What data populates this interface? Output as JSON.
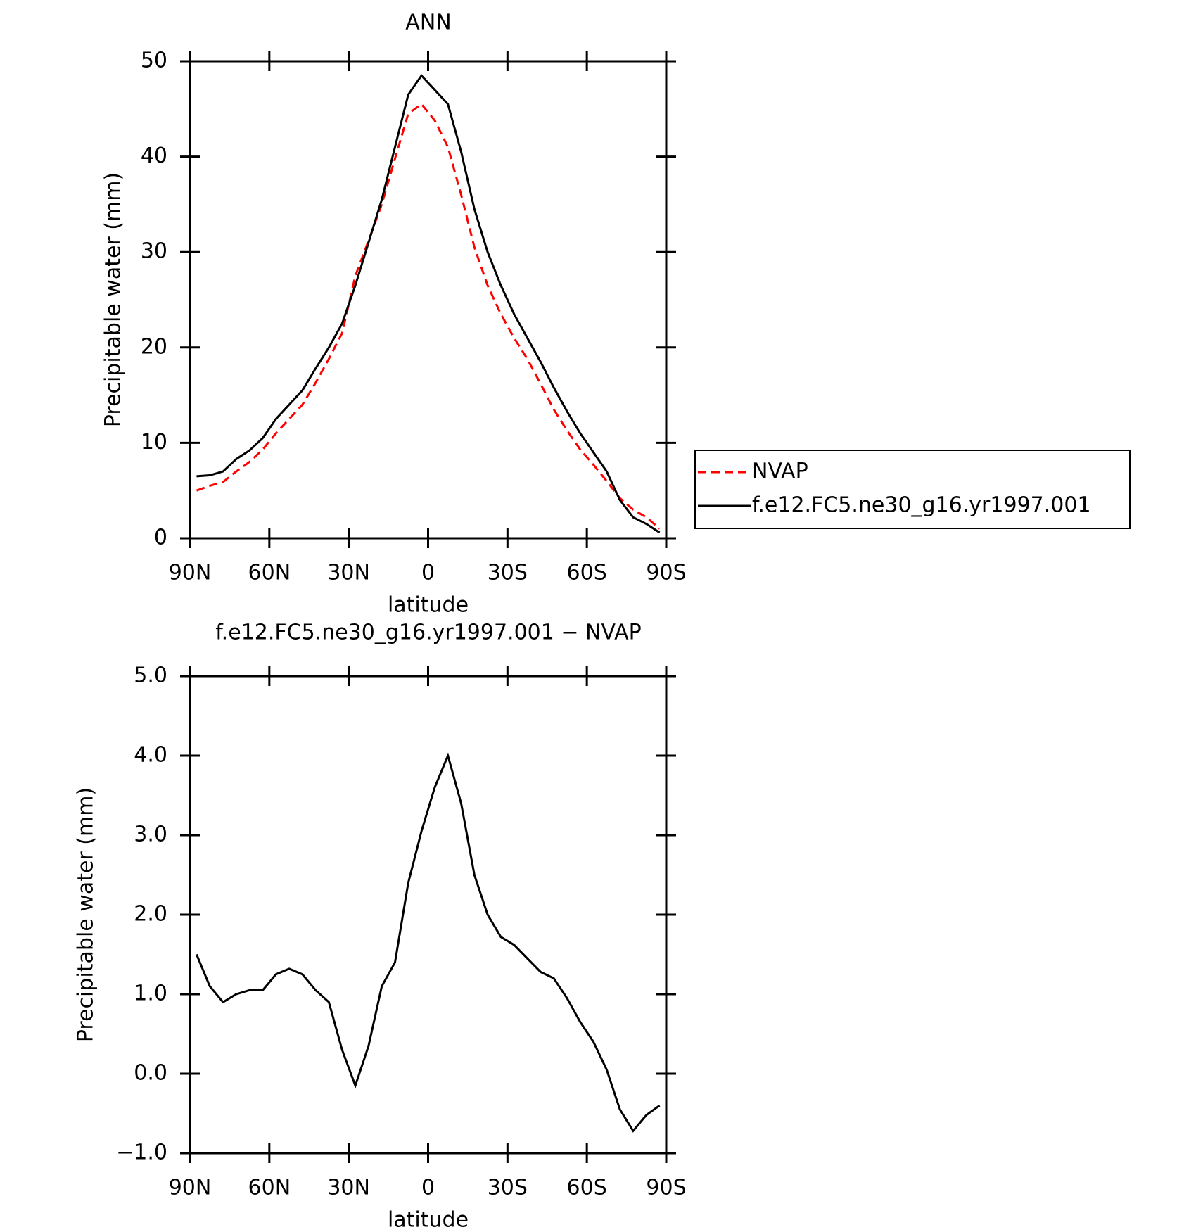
{
  "chart_data": [
    {
      "type": "line",
      "title": "ANN",
      "x_label": "latitude",
      "y_label": "Precipitable water (mm)",
      "x": [
        87.5,
        82.5,
        77.5,
        72.5,
        67.5,
        62.5,
        57.5,
        52.5,
        47.5,
        42.5,
        37.5,
        32.5,
        27.5,
        22.5,
        17.5,
        12.5,
        7.5,
        2.5,
        -2.5,
        -7.5,
        -12.5,
        -17.5,
        -22.5,
        -27.5,
        -32.5,
        -37.5,
        -42.5,
        -47.5,
        -52.5,
        -57.5,
        -62.5,
        -67.5,
        -72.5,
        -77.5,
        -82.5,
        -87.5
      ],
      "series": [
        {
          "name": "NVAP",
          "color": "#ff0000",
          "line_style": "dashed",
          "values": [
            5.0,
            5.5,
            5.9,
            7.0,
            8.0,
            9.3,
            11.0,
            12.5,
            14.0,
            16.3,
            18.8,
            21.5,
            27.5,
            31.2,
            35.0,
            39.8,
            44.5,
            45.5,
            43.8,
            41.0,
            36.0,
            30.5,
            26.5,
            23.5,
            21.0,
            18.8,
            16.2,
            13.5,
            11.3,
            9.3,
            7.7,
            6.0,
            4.2,
            3.0,
            2.2,
            1.0
          ]
        },
        {
          "name": "f.e12.FC5.ne30_g16.yr1997.001",
          "color": "#000000",
          "line_style": "solid",
          "values": [
            6.5,
            6.6,
            7.0,
            8.3,
            9.2,
            10.5,
            12.5,
            14.0,
            15.5,
            17.8,
            20.0,
            22.5,
            26.5,
            31.0,
            35.5,
            41.0,
            46.5,
            48.5,
            47.0,
            45.5,
            40.5,
            34.5,
            30.0,
            26.5,
            23.5,
            21.0,
            18.5,
            15.8,
            13.3,
            11.0,
            9.0,
            7.0,
            4.0,
            2.2,
            1.5,
            0.6
          ]
        }
      ],
      "xlim": [
        90,
        -90
      ],
      "xticks": [
        {
          "value": 90,
          "label": "90N"
        },
        {
          "value": 60,
          "label": "60N"
        },
        {
          "value": 30,
          "label": "30N"
        },
        0,
        {
          "value": -30,
          "label": "30S"
        },
        {
          "value": -60,
          "label": "60S"
        },
        {
          "value": -90,
          "label": "90S"
        }
      ],
      "ylim": [
        0,
        50
      ],
      "yticks": [
        0,
        10,
        20,
        30,
        40,
        50
      ],
      "legend": "right"
    },
    {
      "type": "line",
      "title": "f.e12.FC5.ne30_g16.yr1997.001 − NVAP",
      "x_label": "latitude",
      "y_label": "Precipitable water (mm)",
      "x": [
        87.5,
        82.5,
        77.5,
        72.5,
        67.5,
        62.5,
        57.5,
        52.5,
        47.5,
        42.5,
        37.5,
        32.5,
        27.5,
        22.5,
        17.5,
        12.5,
        7.5,
        2.5,
        -2.5,
        -7.5,
        -12.5,
        -17.5,
        -22.5,
        -27.5,
        -32.5,
        -37.5,
        -42.5,
        -47.5,
        -52.5,
        -57.5,
        -62.5,
        -67.5,
        -72.5,
        -77.5,
        -82.5,
        -87.5
      ],
      "series": [
        {
          "color": "#000000",
          "line_style": "solid",
          "values": [
            1.5,
            1.1,
            0.9,
            1.0,
            1.05,
            1.05,
            1.25,
            1.32,
            1.25,
            1.05,
            0.9,
            0.3,
            -0.15,
            0.35,
            1.1,
            1.4,
            2.4,
            3.05,
            3.6,
            4.0,
            3.4,
            2.5,
            2.0,
            1.72,
            1.62,
            1.45,
            1.28,
            1.2,
            0.95,
            0.65,
            0.4,
            0.05,
            -0.45,
            -0.72,
            -0.52,
            -0.4
          ]
        }
      ],
      "xlim": [
        90,
        -90
      ],
      "xticks": [
        {
          "value": 90,
          "label": "90N"
        },
        {
          "value": 60,
          "label": "60N"
        },
        {
          "value": 30,
          "label": "30N"
        },
        0,
        {
          "value": -30,
          "label": "30S"
        },
        {
          "value": -60,
          "label": "60S"
        },
        {
          "value": -90,
          "label": "90S"
        }
      ],
      "ylim": [
        -1,
        5
      ],
      "yticks": [
        {
          "value": -1,
          "label": "−1.0"
        },
        {
          "value": 0,
          "label": "0.0"
        },
        {
          "value": 1,
          "label": "1.0"
        },
        {
          "value": 2,
          "label": "2.0"
        },
        {
          "value": 3,
          "label": "3.0"
        },
        {
          "value": 4,
          "label": "4.0"
        },
        {
          "value": 5,
          "label": "5.0"
        }
      ]
    }
  ]
}
